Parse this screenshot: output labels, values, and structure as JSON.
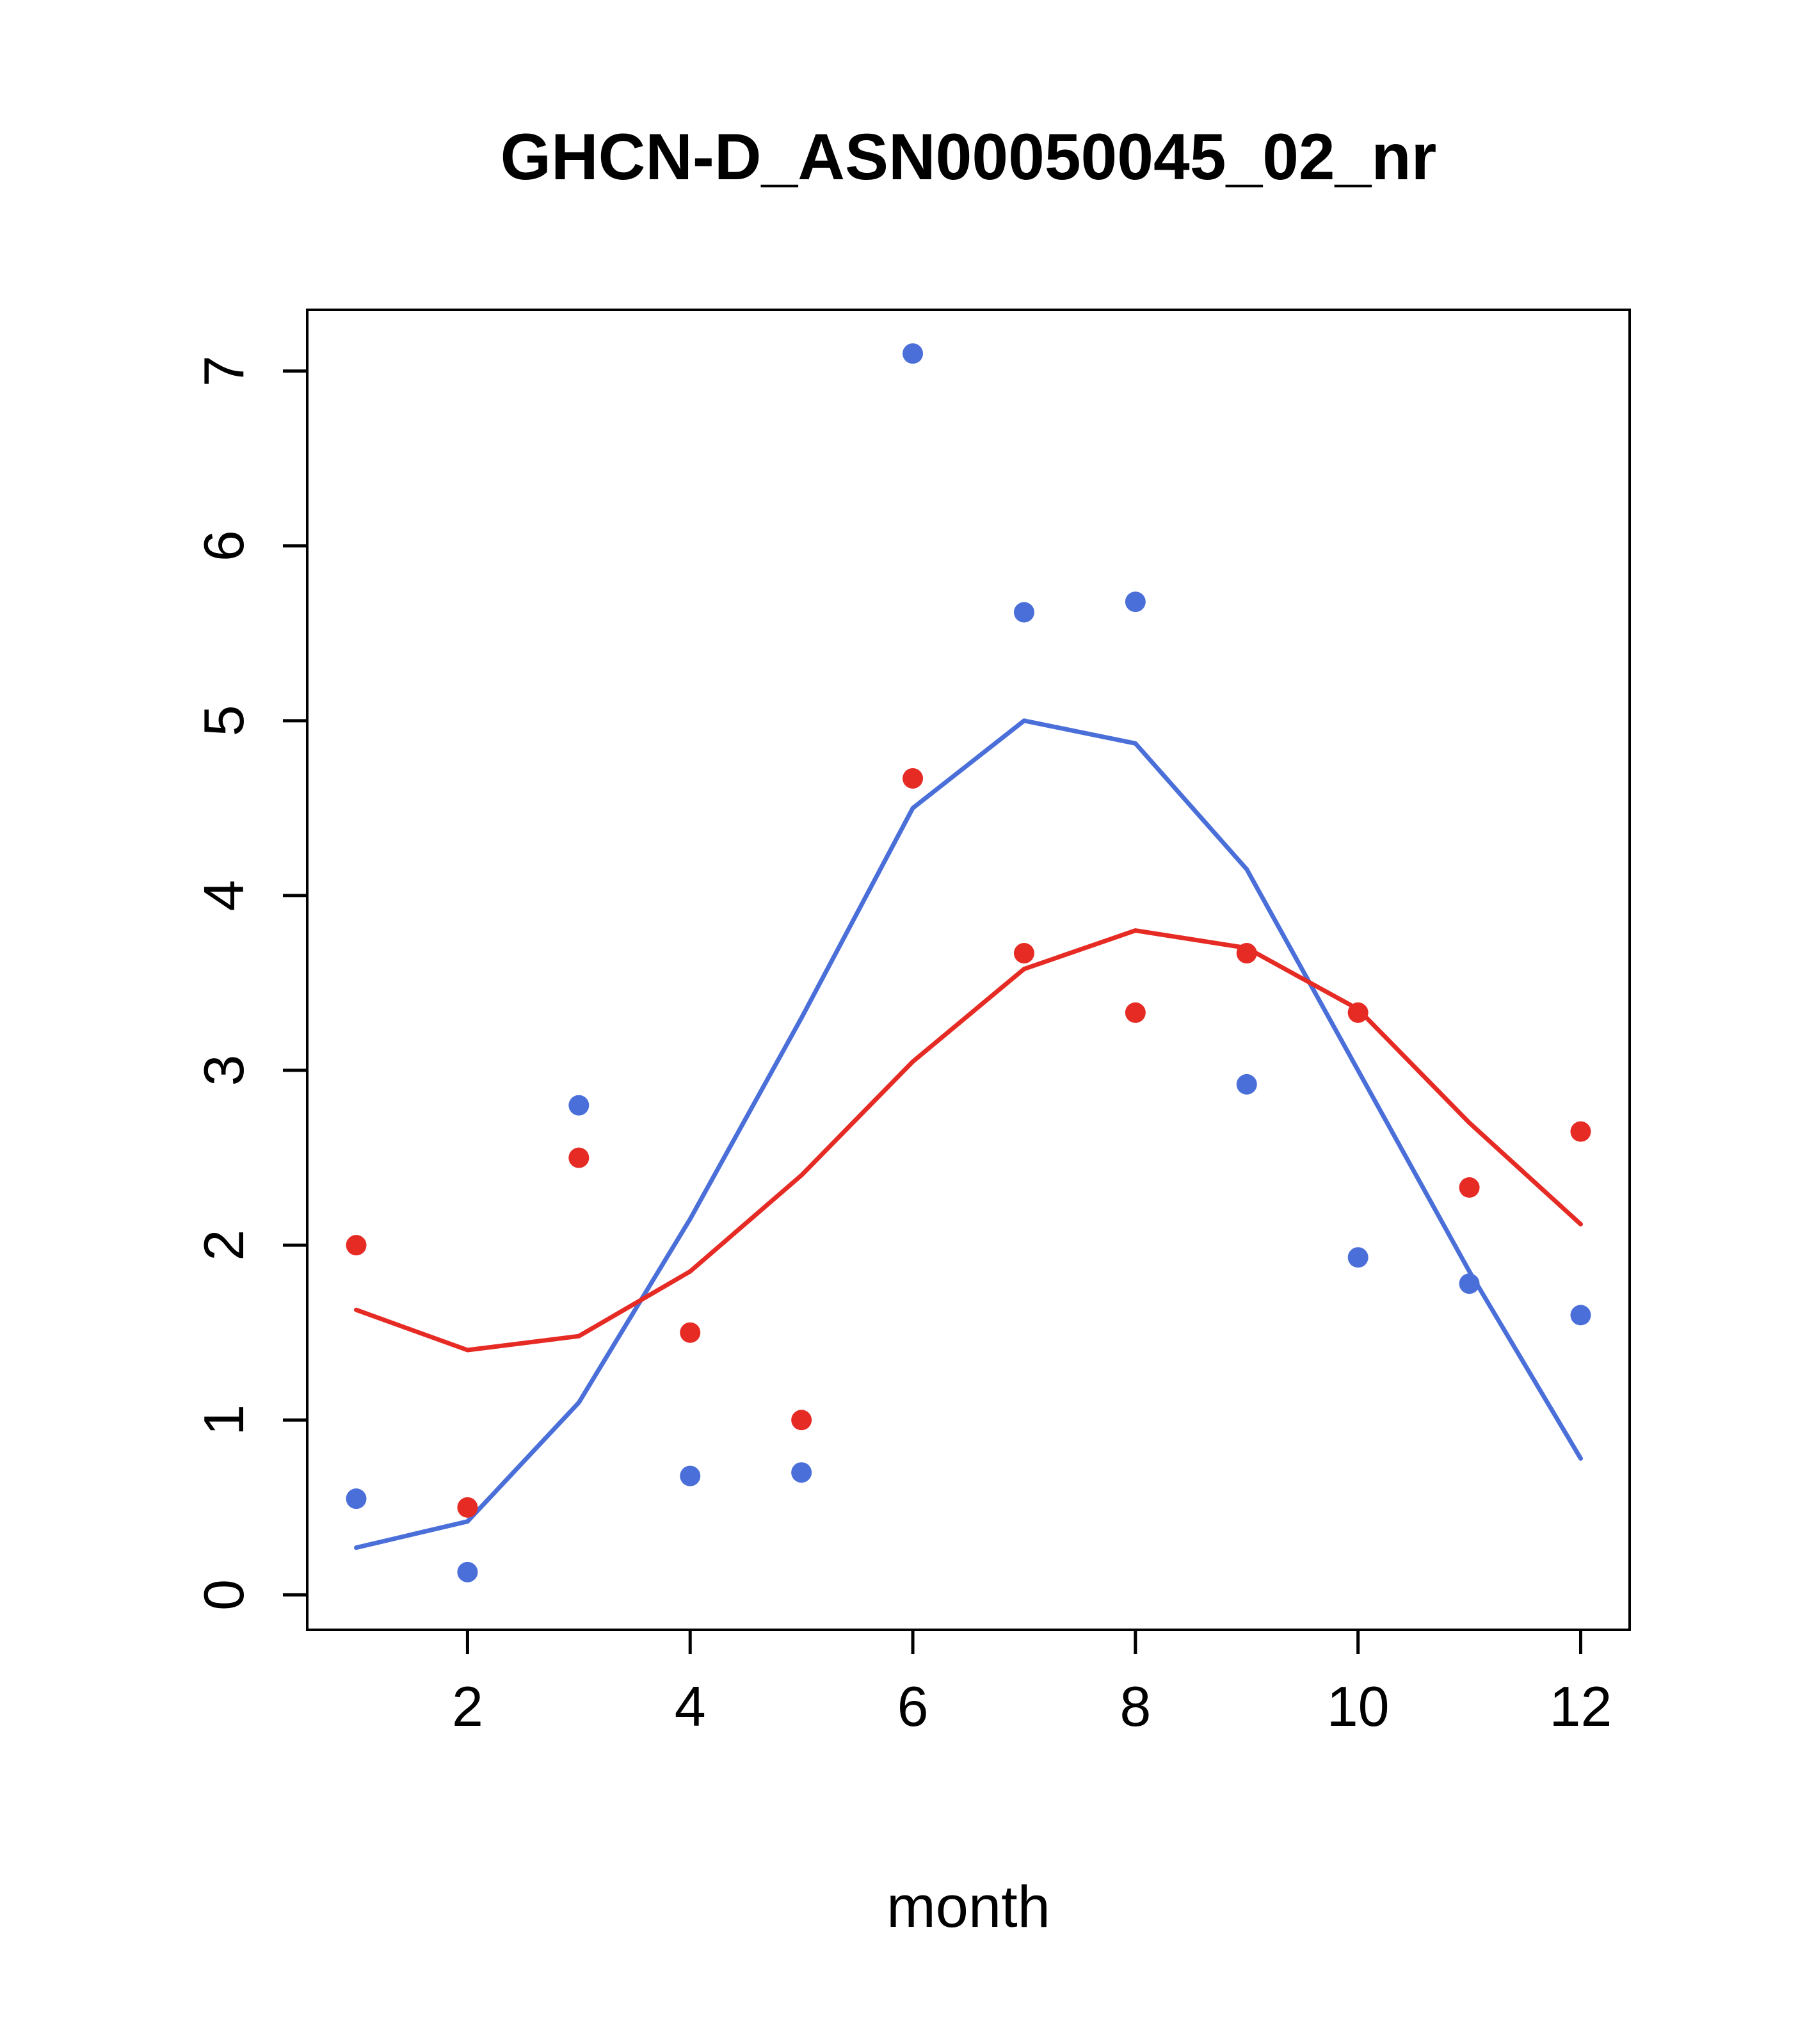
{
  "chart_data": {
    "type": "scatter",
    "title": "GHCN-D_ASN00050045_02_nr",
    "xlabel": "month",
    "ylabel": "",
    "xlim": [
      0.56,
      12.44
    ],
    "ylim": [
      -0.2,
      7.35
    ],
    "x_ticks": [
      2,
      4,
      6,
      8,
      10,
      12
    ],
    "y_ticks": [
      0,
      1,
      2,
      3,
      4,
      5,
      6,
      7
    ],
    "grid": "off",
    "legend": "none",
    "axis_color": "#000000",
    "x": [
      1,
      2,
      3,
      4,
      5,
      6,
      7,
      8,
      9,
      10,
      11,
      12
    ],
    "series": [
      {
        "name": "blue-points",
        "type": "points",
        "color": "#4b6fd9",
        "values": [
          0.55,
          0.13,
          2.8,
          0.68,
          0.7,
          7.1,
          5.62,
          5.68,
          2.92,
          1.93,
          1.78,
          1.6
        ]
      },
      {
        "name": "red-points",
        "type": "points",
        "color": "#e62b25",
        "values": [
          2.0,
          0.5,
          2.5,
          1.5,
          1.0,
          4.67,
          3.67,
          3.33,
          3.67,
          3.33,
          2.33,
          2.65
        ]
      },
      {
        "name": "blue-smooth-line",
        "type": "line",
        "color": "#4b6fd9",
        "values": [
          0.27,
          0.42,
          1.1,
          2.15,
          3.3,
          4.5,
          5.0,
          4.87,
          4.15,
          3.0,
          1.85,
          0.78
        ]
      },
      {
        "name": "red-smooth-line",
        "type": "line",
        "color": "#e62b25",
        "values": [
          1.63,
          1.4,
          1.48,
          1.85,
          2.4,
          3.05,
          3.58,
          3.8,
          3.7,
          3.35,
          2.7,
          2.12
        ]
      }
    ]
  }
}
